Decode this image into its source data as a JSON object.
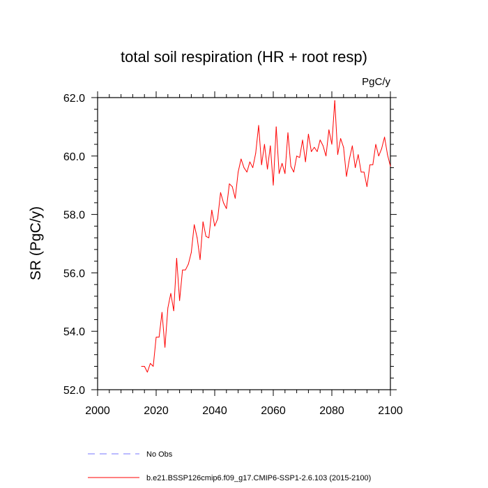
{
  "chart_data": {
    "type": "line",
    "title": "total soil respiration (HR + root resp)",
    "units": "PgC/y",
    "ylabel": "SR  (PgC/y)",
    "xlabel": "",
    "xlim": [
      2000,
      2100
    ],
    "ylim": [
      52.0,
      62.0
    ],
    "xticks": [
      2000,
      2020,
      2040,
      2060,
      2080,
      2100
    ],
    "xtick_labels": [
      "2000",
      "2020",
      "2040",
      "2060",
      "2080",
      "2100"
    ],
    "yticks": [
      52.0,
      54.0,
      56.0,
      58.0,
      60.0,
      62.0
    ],
    "ytick_labels": [
      "52.0",
      "54.0",
      "56.0",
      "58.0",
      "60.0",
      "62.0"
    ],
    "legend": [
      {
        "label": "No Obs",
        "color": "#7777ff",
        "style": "dashed"
      },
      {
        "label": "b.e21.BSSP126cmip6.f09_g17.CMIP6-SSP1-2.6.103 (2015-2100)",
        "color": "#ff0000",
        "style": "solid"
      }
    ],
    "series": [
      {
        "name": "b.e21.BSSP126cmip6.f09_g17.CMIP6-SSP1-2.6.103 (2015-2100)",
        "color": "#ff0000",
        "x": [
          2015,
          2016,
          2017,
          2018,
          2019,
          2020,
          2021,
          2022,
          2023,
          2024,
          2025,
          2026,
          2027,
          2028,
          2029,
          2030,
          2031,
          2032,
          2033,
          2034,
          2035,
          2036,
          2037,
          2038,
          2039,
          2040,
          2041,
          2042,
          2043,
          2044,
          2045,
          2046,
          2047,
          2048,
          2049,
          2050,
          2051,
          2052,
          2053,
          2054,
          2055,
          2056,
          2057,
          2058,
          2059,
          2060,
          2061,
          2062,
          2063,
          2064,
          2065,
          2066,
          2067,
          2068,
          2069,
          2070,
          2071,
          2072,
          2073,
          2074,
          2075,
          2076,
          2077,
          2078,
          2079,
          2080,
          2081,
          2082,
          2083,
          2084,
          2085,
          2086,
          2087,
          2088,
          2089,
          2090,
          2091,
          2092,
          2093,
          2094,
          2095,
          2096,
          2097,
          2098,
          2099,
          2100
        ],
        "values": [
          52.8,
          52.8,
          52.6,
          52.9,
          52.8,
          53.8,
          53.8,
          54.65,
          53.45,
          54.8,
          55.3,
          54.7,
          56.5,
          55.05,
          56.1,
          56.1,
          56.3,
          56.7,
          57.65,
          57.2,
          56.45,
          57.75,
          57.25,
          57.2,
          58.15,
          57.6,
          57.85,
          58.75,
          58.4,
          58.2,
          59.05,
          58.95,
          58.55,
          59.45,
          59.9,
          59.6,
          59.45,
          59.8,
          59.6,
          60.1,
          61.05,
          59.7,
          60.4,
          59.55,
          60.35,
          59.0,
          61.0,
          59.4,
          59.75,
          59.4,
          60.8,
          59.65,
          59.45,
          60.0,
          59.95,
          60.55,
          59.8,
          60.75,
          60.15,
          60.3,
          60.15,
          60.55,
          60.35,
          60.0,
          60.9,
          60.4,
          61.9,
          60.05,
          60.6,
          60.3,
          59.3,
          59.9,
          60.35,
          59.6,
          60.05,
          59.45,
          59.45,
          58.95,
          59.7,
          59.7,
          60.4,
          60.0,
          60.25,
          60.65,
          60.05,
          59.65
        ]
      }
    ]
  }
}
